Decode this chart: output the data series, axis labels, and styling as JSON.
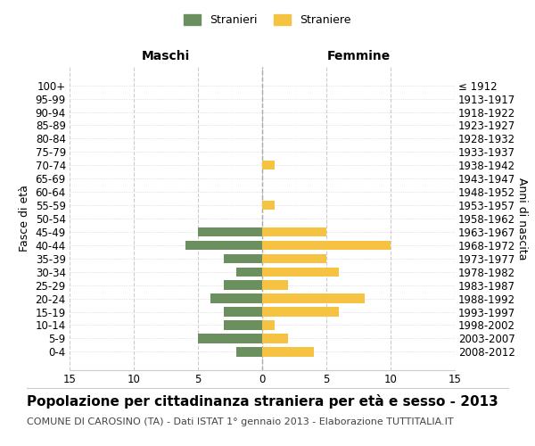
{
  "age_groups": [
    "100+",
    "95-99",
    "90-94",
    "85-89",
    "80-84",
    "75-79",
    "70-74",
    "65-69",
    "60-64",
    "55-59",
    "50-54",
    "45-49",
    "40-44",
    "35-39",
    "30-34",
    "25-29",
    "20-24",
    "15-19",
    "10-14",
    "5-9",
    "0-4"
  ],
  "birth_years": [
    "≤ 1912",
    "1913-1917",
    "1918-1922",
    "1923-1927",
    "1928-1932",
    "1933-1937",
    "1938-1942",
    "1943-1947",
    "1948-1952",
    "1953-1957",
    "1958-1962",
    "1963-1967",
    "1968-1972",
    "1973-1977",
    "1978-1982",
    "1983-1987",
    "1988-1992",
    "1993-1997",
    "1998-2002",
    "2003-2007",
    "2008-2012"
  ],
  "maschi": [
    0,
    0,
    0,
    0,
    0,
    0,
    0,
    0,
    0,
    0,
    0,
    5,
    6,
    3,
    2,
    3,
    4,
    3,
    3,
    5,
    2
  ],
  "femmine": [
    0,
    0,
    0,
    0,
    0,
    0,
    1,
    0,
    0,
    1,
    0,
    5,
    10,
    5,
    6,
    2,
    8,
    6,
    1,
    2,
    4
  ],
  "color_maschi": "#6b8f5e",
  "color_femmine": "#f5c242",
  "xlim": 15,
  "title": "Popolazione per cittadinanza straniera per età e sesso - 2013",
  "subtitle": "COMUNE DI CAROSINO (TA) - Dati ISTAT 1° gennaio 2013 - Elaborazione TUTTITALIA.IT",
  "xlabel_left": "Maschi",
  "xlabel_right": "Femmine",
  "ylabel_left": "Fasce di età",
  "ylabel_right": "Anni di nascita",
  "legend_maschi": "Stranieri",
  "legend_femmine": "Straniere",
  "bg_color": "#ffffff",
  "grid_color": "#cccccc",
  "title_fontsize": 11,
  "subtitle_fontsize": 8,
  "tick_fontsize": 8.5
}
